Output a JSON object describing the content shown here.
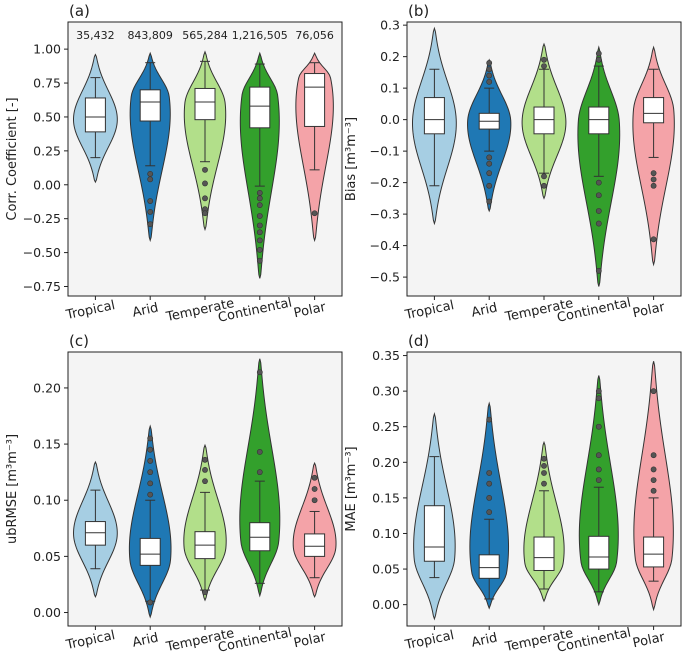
{
  "chart_data": [
    {
      "type": "violin",
      "panel_label": "(a)",
      "ylabel": "Corr. Coefficient [-]",
      "ylim": [
        -0.82,
        1.2
      ],
      "yticks": [
        -0.75,
        -0.5,
        -0.25,
        0.0,
        0.25,
        0.5,
        0.75,
        1.0
      ],
      "ytick_labels": [
        "−0.75",
        "−0.50",
        "−0.25",
        "0.00",
        "0.25",
        "0.50",
        "0.75",
        "1.00"
      ],
      "categories": [
        "Tropical",
        "Arid",
        "Temperate",
        "Continental",
        "Polar"
      ],
      "colors": [
        "#a6cee3",
        "#1f78b4",
        "#b2df8a",
        "#33a02c",
        "#f4a3a8"
      ],
      "counts": [
        "35,432",
        "843,809",
        "565,284",
        "1,216,505",
        "76,056"
      ],
      "stats": [
        {
          "q1": 0.39,
          "median": 0.5,
          "q3": 0.64,
          "wlo": 0.2,
          "whi": 0.79,
          "vmin": 0.02,
          "vmax": 0.96,
          "mode": 0.48,
          "outliers": []
        },
        {
          "q1": 0.47,
          "median": 0.61,
          "q3": 0.7,
          "wlo": 0.14,
          "whi": 0.9,
          "vmin": -0.41,
          "vmax": 0.97,
          "mode": 0.65,
          "outliers": [
            0.08,
            0.04,
            -0.12,
            -0.2,
            -0.29
          ]
        },
        {
          "q1": 0.48,
          "median": 0.61,
          "q3": 0.71,
          "wlo": 0.17,
          "whi": 0.91,
          "vmin": -0.33,
          "vmax": 0.98,
          "mode": 0.6,
          "outliers": [
            0.11,
            0.01,
            -0.1,
            -0.18,
            -0.21
          ]
        },
        {
          "q1": 0.42,
          "median": 0.58,
          "q3": 0.72,
          "wlo": -0.01,
          "whi": 0.89,
          "vmin": -0.69,
          "vmax": 0.97,
          "mode": 0.66,
          "outliers": [
            -0.06,
            -0.1,
            -0.15,
            -0.23,
            -0.3,
            -0.35,
            -0.41,
            -0.48,
            -0.56
          ]
        },
        {
          "q1": 0.43,
          "median": 0.72,
          "q3": 0.82,
          "wlo": 0.11,
          "whi": 0.9,
          "vmin": -0.41,
          "vmax": 0.97,
          "mode": 0.79,
          "outliers": [
            -0.21
          ]
        }
      ]
    },
    {
      "type": "violin",
      "panel_label": "(b)",
      "ylabel": "Bias [m³m⁻³]",
      "ylim": [
        -0.56,
        0.31
      ],
      "yticks": [
        -0.5,
        -0.4,
        -0.3,
        -0.2,
        -0.1,
        0.0,
        0.1,
        0.2,
        0.3
      ],
      "ytick_labels": [
        "−0.5",
        "−0.4",
        "−0.3",
        "−0.2",
        "−0.1",
        "0.0",
        "0.1",
        "0.2",
        "0.3"
      ],
      "categories": [
        "Tropical",
        "Arid",
        "Temperate",
        "Continental",
        "Polar"
      ],
      "colors": [
        "#a6cee3",
        "#1f78b4",
        "#b2df8a",
        "#33a02c",
        "#f4a3a8"
      ],
      "stats": [
        {
          "q1": -0.045,
          "median": 0.0,
          "q3": 0.07,
          "wlo": -0.21,
          "whi": 0.16,
          "vmin": -0.33,
          "vmax": 0.29,
          "mode": -0.01,
          "outliers": []
        },
        {
          "q1": -0.03,
          "median": -0.005,
          "q3": 0.02,
          "wlo": -0.1,
          "whi": 0.1,
          "vmin": -0.29,
          "vmax": 0.19,
          "mode": -0.005,
          "outliers": [
            0.18,
            0.16,
            0.14,
            0.12,
            -0.12,
            -0.14,
            -0.17,
            -0.21,
            -0.26
          ]
        },
        {
          "q1": -0.045,
          "median": 0.0,
          "q3": 0.04,
          "wlo": -0.17,
          "whi": 0.16,
          "vmin": -0.25,
          "vmax": 0.24,
          "mode": -0.01,
          "outliers": [
            0.17,
            0.19,
            -0.18,
            -0.21
          ]
        },
        {
          "q1": -0.045,
          "median": 0.0,
          "q3": 0.04,
          "wlo": -0.18,
          "whi": 0.17,
          "vmin": -0.53,
          "vmax": 0.23,
          "mode": -0.005,
          "outliers": [
            0.19,
            0.21,
            -0.2,
            -0.24,
            -0.29,
            -0.33,
            -0.48
          ]
        },
        {
          "q1": -0.01,
          "median": 0.02,
          "q3": 0.07,
          "wlo": -0.12,
          "whi": 0.16,
          "vmin": -0.46,
          "vmax": 0.23,
          "mode": 0.03,
          "outliers": [
            -0.17,
            -0.19,
            -0.21,
            -0.38
          ]
        }
      ]
    },
    {
      "type": "violin",
      "panel_label": "(c)",
      "ylabel": "ubRMSE [m³m⁻³]",
      "ylim": [
        -0.012,
        0.232
      ],
      "yticks": [
        0.0,
        0.05,
        0.1,
        0.15,
        0.2
      ],
      "ytick_labels": [
        "0.00",
        "0.05",
        "0.10",
        "0.15",
        "0.20"
      ],
      "categories": [
        "Tropical",
        "Arid",
        "Temperate",
        "Continental",
        "Polar"
      ],
      "colors": [
        "#a6cee3",
        "#1f78b4",
        "#b2df8a",
        "#33a02c",
        "#f4a3a8"
      ],
      "stats": [
        {
          "q1": 0.06,
          "median": 0.071,
          "q3": 0.081,
          "wlo": 0.039,
          "whi": 0.109,
          "vmin": 0.014,
          "vmax": 0.134,
          "mode": 0.07,
          "outliers": []
        },
        {
          "q1": 0.042,
          "median": 0.052,
          "q3": 0.066,
          "wlo": 0.01,
          "whi": 0.1,
          "vmin": -0.004,
          "vmax": 0.166,
          "mode": 0.047,
          "outliers": [
            0.105,
            0.115,
            0.125,
            0.135,
            0.145,
            0.155,
            0.009
          ]
        },
        {
          "q1": 0.048,
          "median": 0.06,
          "q3": 0.072,
          "wlo": 0.02,
          "whi": 0.107,
          "vmin": 0.011,
          "vmax": 0.149,
          "mode": 0.058,
          "outliers": [
            0.117,
            0.127,
            0.136,
            0.018
          ]
        },
        {
          "q1": 0.055,
          "median": 0.067,
          "q3": 0.08,
          "wlo": 0.026,
          "whi": 0.117,
          "vmin": 0.015,
          "vmax": 0.226,
          "mode": 0.063,
          "outliers": [
            0.125,
            0.143,
            0.214
          ]
        },
        {
          "q1": 0.05,
          "median": 0.059,
          "q3": 0.07,
          "wlo": 0.031,
          "whi": 0.09,
          "vmin": 0.014,
          "vmax": 0.133,
          "mode": 0.058,
          "outliers": [
            0.1,
            0.11,
            0.12
          ]
        }
      ]
    },
    {
      "type": "violin",
      "panel_label": "(d)",
      "ylabel": "MAE [m³m⁻³]",
      "ylim": [
        -0.03,
        0.355
      ],
      "yticks": [
        0.0,
        0.05,
        0.1,
        0.15,
        0.2,
        0.25,
        0.3,
        0.35
      ],
      "ytick_labels": [
        "0.00",
        "0.05",
        "0.10",
        "0.15",
        "0.20",
        "0.25",
        "0.30",
        "0.35"
      ],
      "categories": [
        "Tropical",
        "Arid",
        "Temperate",
        "Continental",
        "Polar"
      ],
      "colors": [
        "#a6cee3",
        "#1f78b4",
        "#b2df8a",
        "#33a02c",
        "#f4a3a8"
      ],
      "stats": [
        {
          "q1": 0.061,
          "median": 0.081,
          "q3": 0.139,
          "wlo": 0.038,
          "whi": 0.208,
          "vmin": -0.02,
          "vmax": 0.268,
          "mode": 0.065,
          "outliers": []
        },
        {
          "q1": 0.037,
          "median": 0.052,
          "q3": 0.07,
          "wlo": 0.008,
          "whi": 0.12,
          "vmin": -0.005,
          "vmax": 0.283,
          "mode": 0.045,
          "outliers": [
            0.13,
            0.15,
            0.17,
            0.185,
            0.26
          ]
        },
        {
          "q1": 0.048,
          "median": 0.066,
          "q3": 0.095,
          "wlo": 0.022,
          "whi": 0.16,
          "vmin": 0.005,
          "vmax": 0.228,
          "mode": 0.058,
          "outliers": [
            0.17,
            0.185,
            0.195,
            0.205
          ]
        },
        {
          "q1": 0.05,
          "median": 0.067,
          "q3": 0.096,
          "wlo": 0.018,
          "whi": 0.165,
          "vmin": 0.0,
          "vmax": 0.322,
          "mode": 0.06,
          "outliers": [
            0.175,
            0.19,
            0.21,
            0.25,
            0.29,
            0.3
          ]
        },
        {
          "q1": 0.053,
          "median": 0.071,
          "q3": 0.095,
          "wlo": 0.033,
          "whi": 0.15,
          "vmin": -0.007,
          "vmax": 0.342,
          "mode": 0.065,
          "outliers": [
            0.16,
            0.175,
            0.19,
            0.21,
            0.3
          ]
        }
      ]
    }
  ]
}
